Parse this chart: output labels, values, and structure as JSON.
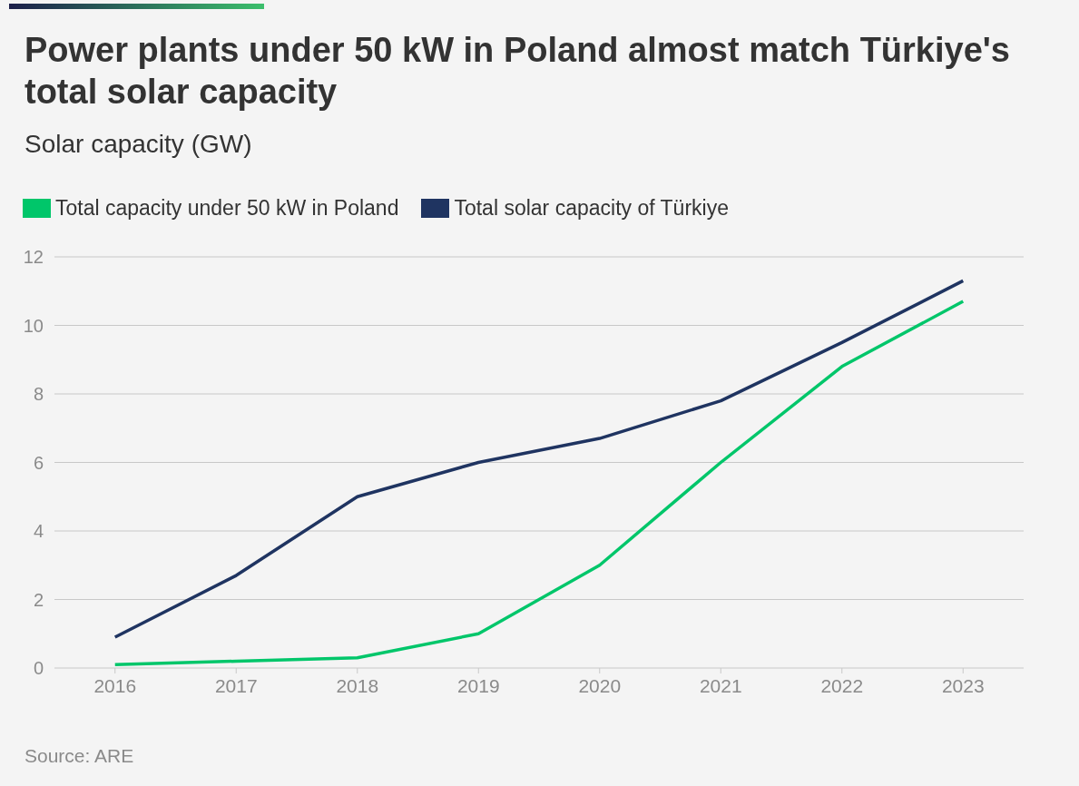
{
  "chart_data": {
    "type": "line",
    "title": "Power plants under 50 kW in Poland almost match Türkiye's total solar capacity",
    "subtitle": "Solar capacity (GW)",
    "annotations": [
      "Source: ARE"
    ],
    "categories": [
      "2016",
      "2017",
      "2018",
      "2019",
      "2020",
      "2021",
      "2022",
      "2023"
    ],
    "series": [
      {
        "name": "Total capacity under 50 kW in Poland",
        "color": "#00c66a",
        "values": [
          0.1,
          0.2,
          0.3,
          1.0,
          3.0,
          6.0,
          8.8,
          10.7
        ]
      },
      {
        "name": "Total solar capacity of Türkiye",
        "color": "#1f3461",
        "values": [
          0.9,
          2.7,
          5.0,
          6.0,
          6.7,
          7.8,
          9.5,
          11.3
        ]
      }
    ],
    "ylim": [
      0,
      12
    ],
    "yticks": [
      0,
      2,
      4,
      6,
      8,
      10,
      12
    ],
    "grid": "y",
    "legend": "top left",
    "marker": "none"
  }
}
